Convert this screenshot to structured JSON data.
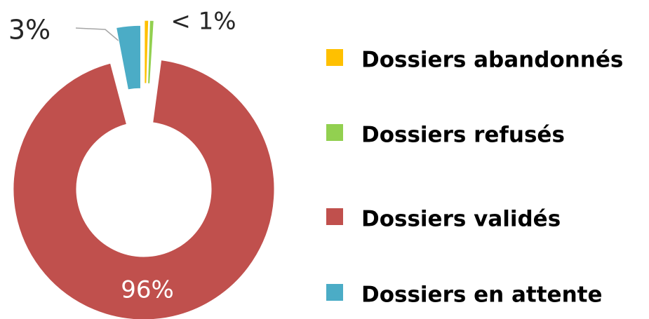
{
  "chart_data": {
    "type": "donut",
    "categories": [
      "Dossiers abandonnés",
      "Dossiers refusés",
      "Dossiers validés",
      "Dossiers en attente"
    ],
    "values": [
      0.5,
      0.5,
      96,
      3
    ],
    "value_labels": [
      "< 1%",
      null,
      "96%",
      "3%"
    ],
    "colors": [
      "#FFC000",
      "#92D050",
      "#C0504D",
      "#4BACC6"
    ],
    "legend": "right"
  }
}
